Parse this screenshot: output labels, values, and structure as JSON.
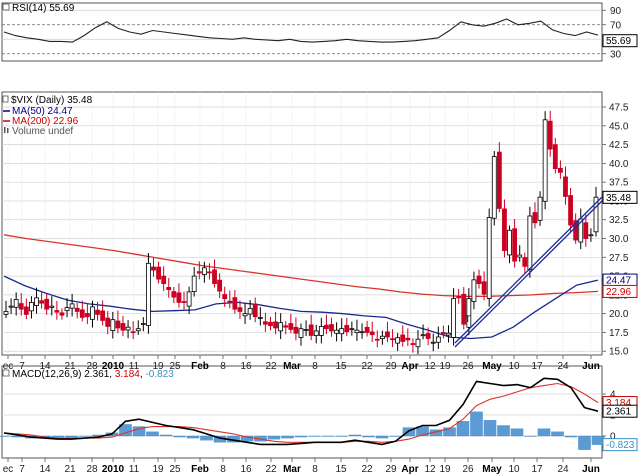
{
  "chart_data": {
    "type": "candlestick",
    "title": "$VIX (Daily)",
    "last_value": "35.48",
    "x_tick_labels": [
      "ec",
      "7",
      "14",
      "21",
      "28",
      "2010",
      "11",
      "19",
      "25",
      "Feb",
      "8",
      "16",
      "22",
      "Mar",
      "8",
      "15",
      "22",
      "29",
      "Apr",
      "12",
      "19",
      "26",
      "May",
      "10",
      "17",
      "24",
      "Jun"
    ],
    "bold_x_ticks": [
      "2010",
      "Feb",
      "Mar",
      "Apr",
      "May",
      "Jun"
    ],
    "price_panel": {
      "ylim": [
        14.5,
        49.5
      ],
      "y_ticks": [
        "15.0",
        "17.5",
        "20.0",
        "22.5",
        "25.0",
        "27.5",
        "30.0",
        "32.5",
        "35.0",
        "37.5",
        "40.0",
        "42.5",
        "45.0",
        "47.5"
      ],
      "legend": [
        {
          "label": "$VIX (Daily) 35.48",
          "color": "#000000"
        },
        {
          "label": "MA(50) 24.47",
          "color": "#000080"
        },
        {
          "label": "MA(200) 22.96",
          "color": "#cc0000"
        },
        {
          "label": "Volume undef",
          "color": "#555555"
        }
      ],
      "value_tags": [
        {
          "text": "35.48",
          "value": 35.48,
          "color": "#000000"
        },
        {
          "text": "24.47",
          "value": 24.47,
          "color": "#000080"
        },
        {
          "text": "22.96",
          "value": 22.96,
          "color": "#cc0000"
        }
      ],
      "ohlc_close_approx": [
        20.3,
        21.0,
        21.9,
        20.6,
        19.9,
        21.5,
        22.1,
        21.4,
        20.6,
        21.0,
        20.2,
        19.8,
        20.8,
        21.3,
        20.3,
        19.5,
        19.6,
        20.9,
        19.9,
        19.1,
        18.3,
        19.2,
        18.1,
        17.8,
        18.2,
        17.6,
        18.0,
        18.7,
        26.7,
        25.8,
        24.6,
        24.0,
        23.2,
        22.2,
        21.5,
        21.6,
        22.9,
        25.0,
        25.4,
        26.1,
        25.5,
        24.0,
        23.0,
        22.0,
        21.6,
        20.6,
        20.3,
        20.0,
        20.7,
        19.6,
        19.5,
        18.6,
        18.4,
        18.1,
        18.8,
        18.2,
        17.9,
        17.4,
        18.0,
        17.9,
        17.1,
        17.7,
        18.3,
        18.0,
        17.7,
        17.8,
        18.0,
        17.6,
        18.0,
        17.8,
        17.6,
        17.5,
        17.2,
        16.6,
        17.0,
        16.9,
        16.6,
        16.8,
        16.3,
        16.5,
        15.9,
        16.6,
        17.2,
        16.7,
        16.2,
        16.9,
        17.3,
        17.4,
        22.0,
        22.1,
        18.6,
        22.0,
        24.5,
        24.0,
        22.6,
        32.8,
        40.9,
        34.0,
        28.4,
        31.1,
        27.0,
        27.8,
        26.3,
        33.0,
        32.1,
        35.5,
        45.8,
        41.9,
        39.3,
        38.8,
        35.6,
        31.8,
        29.8,
        32.6,
        30.0,
        30.5,
        35.5
      ],
      "ma50_approx": [
        25.0,
        23.7,
        22.7,
        21.8,
        21.3,
        21.0,
        20.6,
        20.3,
        20.4,
        20.5,
        21.3,
        21.5,
        21.2,
        20.7,
        20.3,
        20.2,
        20.0,
        19.7,
        19.5,
        18.6,
        17.8,
        16.9,
        16.7,
        16.9,
        18.2,
        20.2,
        22.0,
        23.8,
        24.47
      ],
      "ma200_approx": [
        30.5,
        30.0,
        29.6,
        29.2,
        28.8,
        28.4,
        27.9,
        27.4,
        26.9,
        26.4,
        26.0,
        25.6,
        25.2,
        24.8,
        24.4,
        24.0,
        23.6,
        23.3,
        22.9,
        22.6,
        22.4,
        22.3,
        22.3,
        22.4,
        22.5,
        22.7,
        22.8,
        22.96
      ]
    },
    "rsi_panel": {
      "label": "RSI(14) 55.69",
      "ylim": [
        20,
        100
      ],
      "y_ticks": [
        "90",
        "70",
        "50",
        "30"
      ],
      "tag": "55.69",
      "values_approx": [
        60,
        55,
        52,
        50,
        47,
        47,
        46,
        55,
        66,
        74,
        65,
        60,
        57,
        62,
        60,
        58,
        56,
        54,
        52,
        51,
        50,
        52,
        50,
        49,
        48,
        50,
        47,
        46,
        47,
        48,
        50,
        48,
        47,
        46,
        46,
        47,
        48,
        50,
        52,
        62,
        74,
        70,
        68,
        72,
        78,
        70,
        72,
        75,
        63,
        58,
        55,
        60,
        55.69
      ]
    },
    "macd_panel": {
      "label": "MACD(12,26,9) 2.361, 3.184, -0.823",
      "macd": "2.361",
      "signal": "3.184",
      "histogram": "-0.823",
      "y_ticks": [
        "4",
        "2",
        "0"
      ],
      "macd_approx": [
        0.3,
        0.1,
        -0.1,
        -0.2,
        -0.3,
        -0.3,
        -0.2,
        -0.1,
        0.2,
        1.4,
        1.6,
        1.3,
        1.0,
        0.8,
        0.6,
        0.2,
        -0.2,
        -0.4,
        -0.6,
        -0.8,
        -0.8,
        -0.8,
        -0.7,
        -0.6,
        -0.6,
        -0.6,
        -0.4,
        -0.6,
        -0.8,
        -0.5,
        0.5,
        1.0,
        1.0,
        1.5,
        3.0,
        5.2,
        5.0,
        4.8,
        4.9,
        4.6,
        5.5,
        5.4,
        4.6,
        2.7,
        2.361
      ],
      "signal_approx": [
        0.3,
        0.2,
        0.1,
        -0.1,
        -0.2,
        -0.2,
        -0.2,
        -0.2,
        -0.1,
        0.3,
        0.7,
        0.9,
        0.9,
        0.9,
        0.8,
        0.6,
        0.4,
        0.2,
        -0.1,
        -0.3,
        -0.5,
        -0.6,
        -0.6,
        -0.6,
        -0.6,
        -0.6,
        -0.5,
        -0.5,
        -0.6,
        -0.5,
        -0.3,
        0.1,
        0.4,
        0.7,
        1.6,
        2.9,
        3.5,
        3.8,
        4.2,
        4.6,
        4.8,
        5.0,
        4.7,
        4.0,
        3.184
      ],
      "hist_approx": [
        0.0,
        -0.1,
        -0.2,
        -0.1,
        -0.1,
        -0.1,
        0.0,
        0.1,
        0.3,
        1.1,
        0.9,
        0.4,
        0.1,
        -0.1,
        -0.2,
        -0.4,
        -0.6,
        -0.6,
        -0.5,
        -0.5,
        -0.3,
        -0.2,
        -0.1,
        0.0,
        0.0,
        0.0,
        0.1,
        -0.1,
        -0.2,
        0.0,
        0.8,
        0.9,
        0.6,
        0.8,
        1.4,
        2.3,
        1.5,
        1.0,
        0.7,
        0.0,
        0.7,
        0.4,
        -0.1,
        -1.3,
        -0.823
      ]
    }
  }
}
